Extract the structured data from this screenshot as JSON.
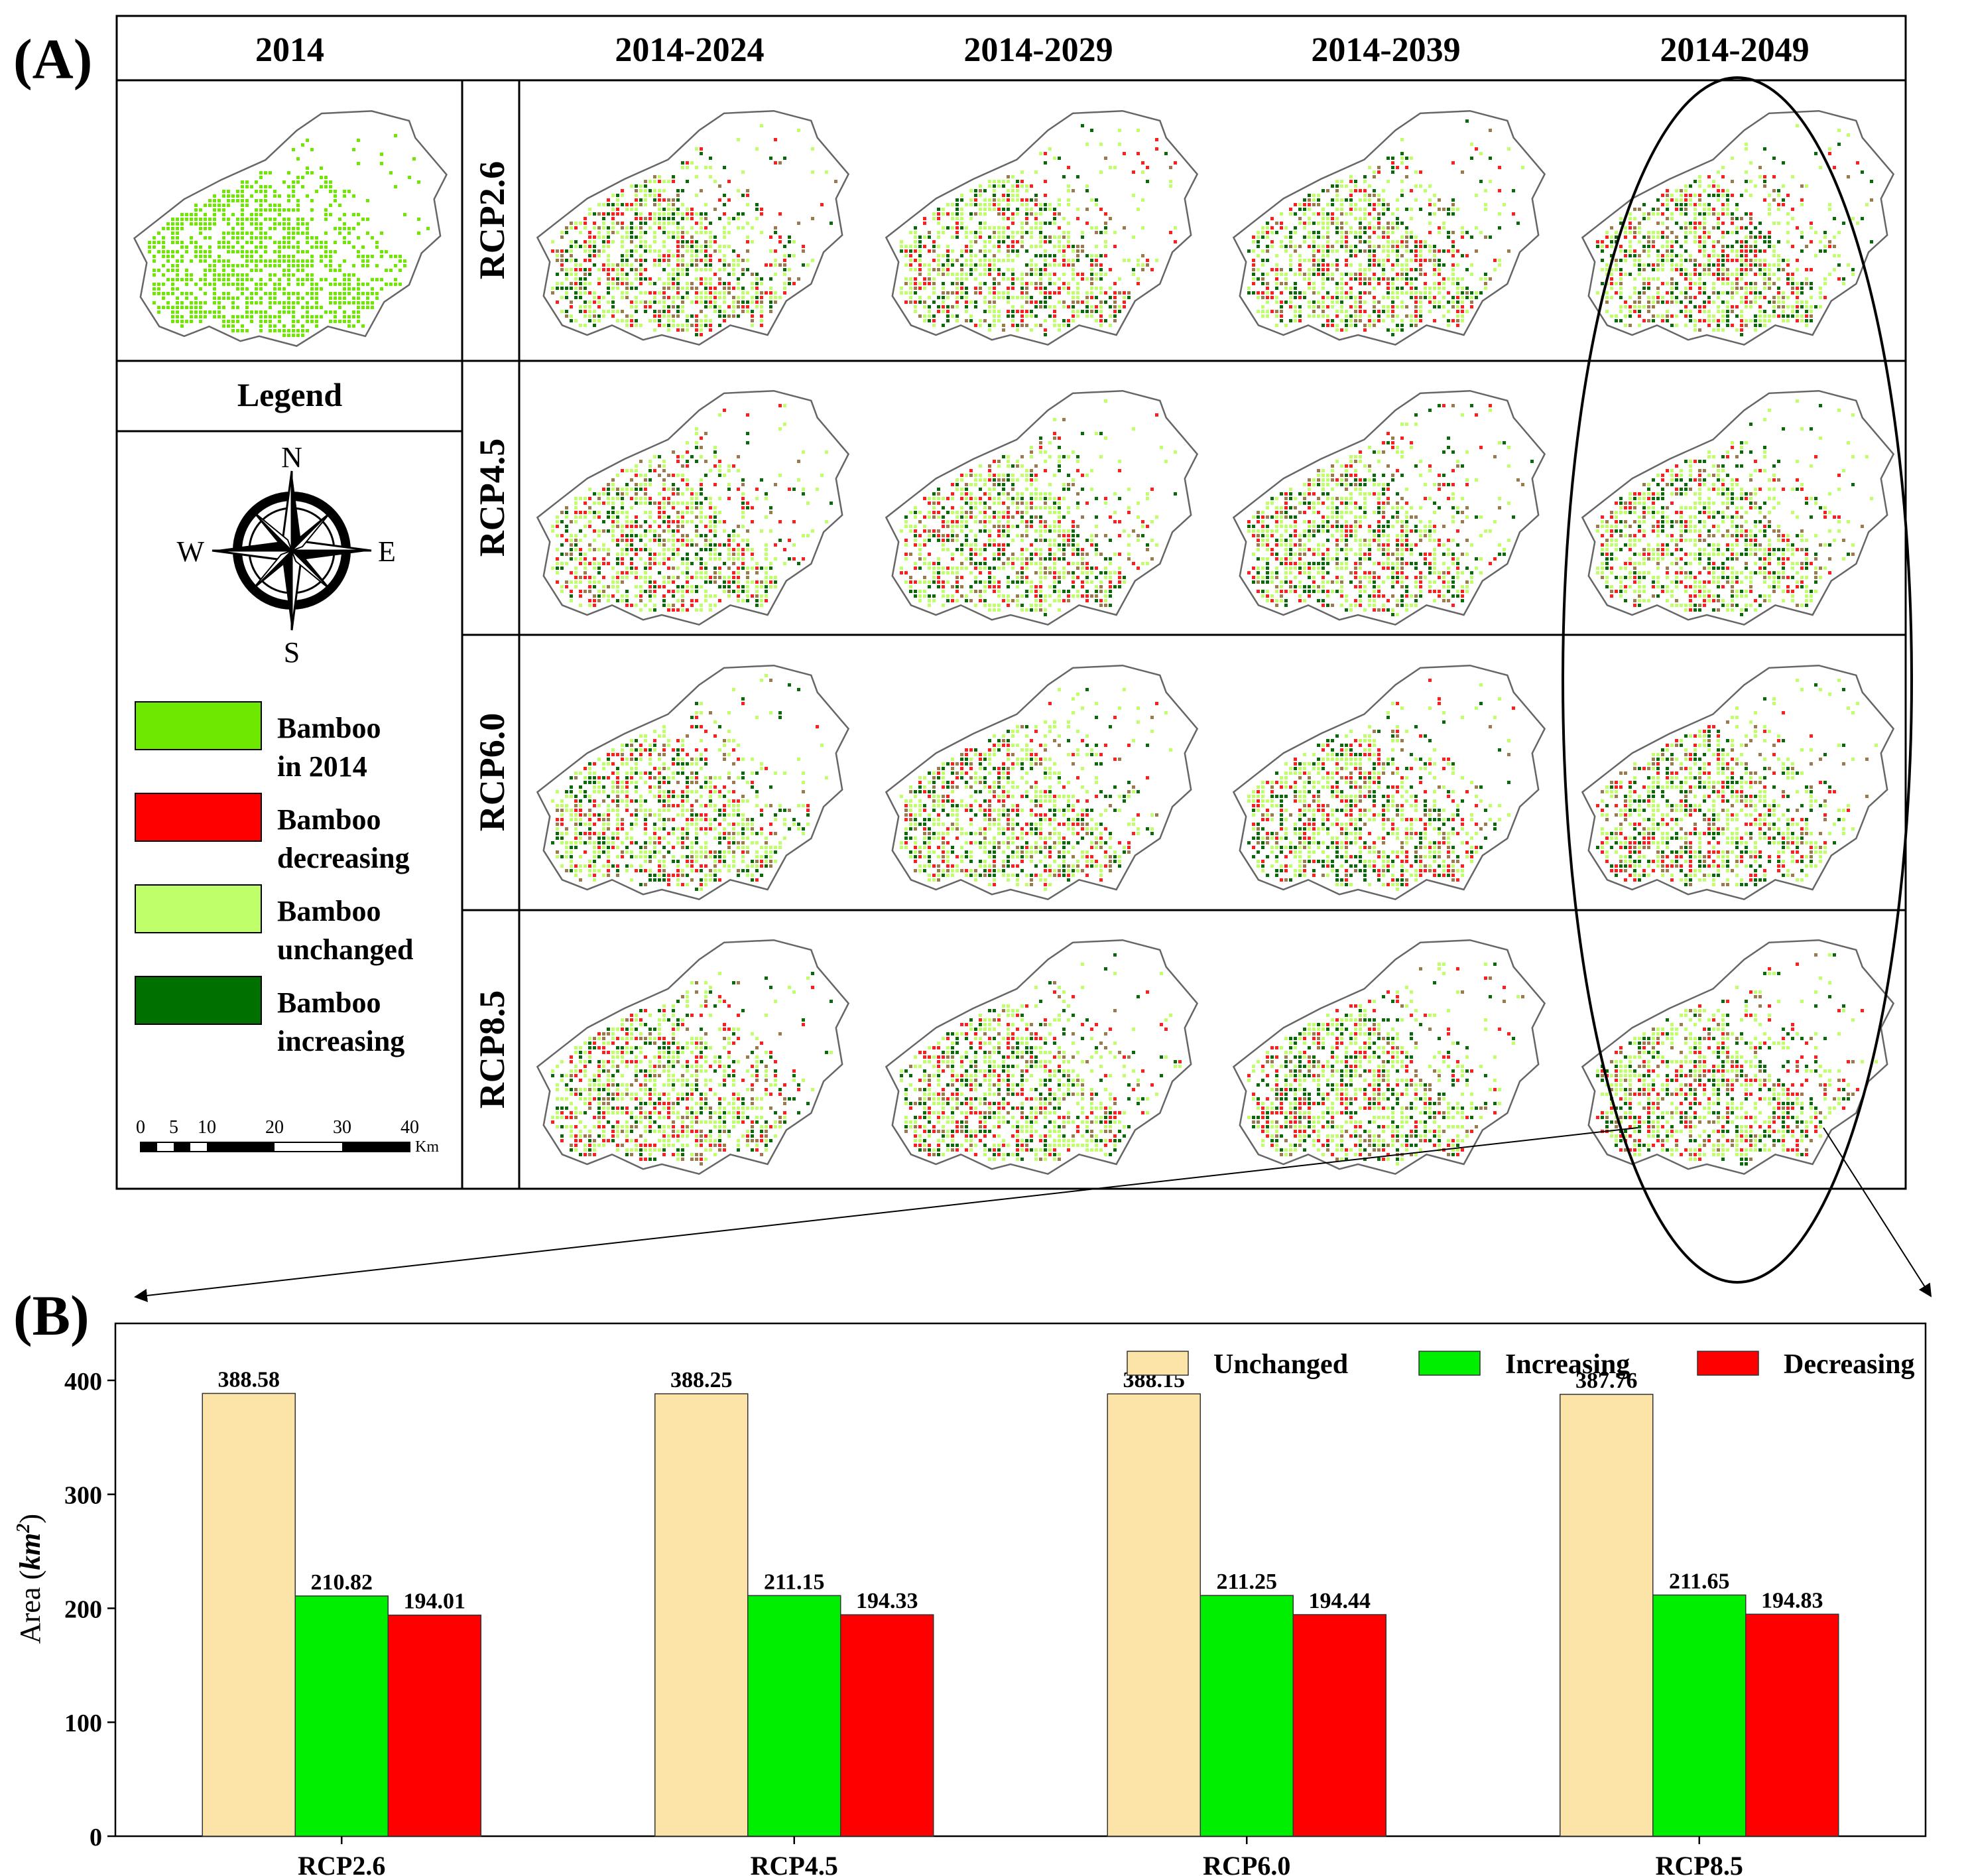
{
  "panel_a": {
    "label": "(A)",
    "base_year": "2014",
    "periods": [
      "2014-2024",
      "2014-2029",
      "2014-2039",
      "2014-2049"
    ],
    "scenarios": [
      "RCP2.6",
      "RCP4.5",
      "RCP6.0",
      "RCP8.5"
    ],
    "legend_title": "Legend",
    "compass": {
      "n": "N",
      "e": "E",
      "s": "S",
      "w": "W"
    },
    "legend_items": [
      {
        "line1": "Bamboo",
        "line2": "in 2014",
        "color": "#6EE800"
      },
      {
        "line1": "Bamboo",
        "line2": "decreasing",
        "color": "#FF0000"
      },
      {
        "line1": "Bamboo",
        "line2": "unchanged",
        "color": "#BFFF6A"
      },
      {
        "line1": "Bamboo",
        "line2": "increasing",
        "color": "#007000"
      }
    ],
    "scale_bar": {
      "ticks": [
        "0",
        "5",
        "10",
        "20",
        "30",
        "40"
      ],
      "unit": "Km"
    },
    "colors": {
      "green": "#6EE800",
      "light": "#BFFF6A",
      "dark": "#0A6A0A",
      "red": "#FF1E1E",
      "brown": "#9B7B4E",
      "outline": "#666666"
    }
  },
  "chart_data": {
    "type": "bar",
    "panel_label": "(B)",
    "categories": [
      "RCP2.6",
      "RCP4.5",
      "RCP6.0",
      "RCP8.5"
    ],
    "series": [
      {
        "name": "Unchanged",
        "color": "#FCE4A8",
        "values": [
          388.58,
          388.25,
          388.15,
          387.76
        ],
        "labels": [
          "388.58",
          "388.25",
          "388.15",
          "387.76"
        ]
      },
      {
        "name": "Increasing",
        "color": "#00EE00",
        "values": [
          210.82,
          211.15,
          211.25,
          211.65
        ],
        "labels": [
          "210.82",
          "211.15",
          "211.25",
          "211.65"
        ]
      },
      {
        "name": "Decreasing",
        "color": "#FF0000",
        "values": [
          194.01,
          194.33,
          194.44,
          194.83
        ],
        "labels": [
          "194.01",
          "194.33",
          "194.44",
          "194.83"
        ]
      }
    ],
    "ylabel": "Area",
    "ylabel_unit": "km",
    "ylabel_unit_power": "2",
    "ylim": [
      0,
      450
    ],
    "yticks": [
      0,
      100,
      200,
      300,
      400
    ],
    "legend_position": "top-right",
    "grid": false
  }
}
